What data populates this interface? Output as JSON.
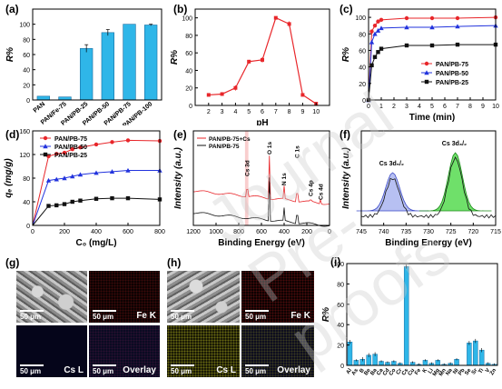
{
  "watermark": "Journal Pre-proofs",
  "colors": {
    "bar": "#2fb6e8",
    "bar_edge": "#1a6fa3",
    "red": "#e8262a",
    "blue": "#2233dd",
    "black": "#111111",
    "pH": "#e8262a"
  },
  "chart_data": [
    {
      "panel": "(a)",
      "type": "bar",
      "categories": [
        "PAN",
        "PAN/Fe-75",
        "PAN/PB-25",
        "PAN/PB-50",
        "PAN/PB-75",
        "PAN/PB-100"
      ],
      "values": [
        5,
        4,
        68,
        89,
        100,
        99
      ],
      "errors": [
        0,
        0,
        5,
        4,
        0,
        1
      ],
      "ylabel": "R%",
      "ylim": [
        0,
        120
      ],
      "yticks": [
        0,
        20,
        40,
        60,
        80,
        100
      ]
    },
    {
      "panel": "(b)",
      "type": "line",
      "x": [
        2,
        3,
        4,
        5,
        6,
        7,
        8,
        9,
        10
      ],
      "values": [
        12,
        13,
        20,
        50,
        52,
        100,
        93,
        12,
        2
      ],
      "errors": [
        0,
        0,
        3,
        2,
        3,
        0,
        3,
        0,
        0
      ],
      "xlabel": "pH",
      "ylabel": "R%",
      "xlim": [
        1,
        11
      ],
      "ylim": [
        0,
        110
      ],
      "xticks": [
        1,
        2,
        3,
        4,
        5,
        6,
        7,
        8,
        9,
        10,
        11
      ],
      "yticks": [
        0,
        20,
        40,
        60,
        80,
        100
      ]
    },
    {
      "panel": "(c)",
      "type": "line",
      "xlabel": "Time (min)",
      "ylabel": "R%",
      "xlim": [
        0,
        10
      ],
      "ylim": [
        0,
        110
      ],
      "xticks": [
        0,
        1,
        2,
        3,
        4,
        5,
        6,
        7,
        8,
        9,
        10
      ],
      "yticks": [
        0,
        20,
        40,
        60,
        80,
        100
      ],
      "legend": "center-right",
      "series": [
        {
          "name": "PAN/PB-75",
          "color": "#e8262a",
          "marker": "circle",
          "x": [
            0,
            0.25,
            0.5,
            0.75,
            1,
            3,
            5,
            7,
            10
          ],
          "values": [
            0,
            83,
            90,
            95,
            97,
            99,
            99,
            99,
            100
          ]
        },
        {
          "name": "PAN/PB-50",
          "color": "#2233dd",
          "marker": "triangle",
          "x": [
            0,
            0.25,
            0.5,
            0.75,
            1,
            3,
            5,
            7,
            10
          ],
          "values": [
            0,
            70,
            80,
            84,
            87,
            88,
            88,
            89,
            90
          ]
        },
        {
          "name": "PAN/PB-25",
          "color": "#111111",
          "marker": "square",
          "x": [
            0,
            0.25,
            0.5,
            0.75,
            1,
            3,
            5,
            7,
            10
          ],
          "values": [
            0,
            42,
            52,
            58,
            62,
            66,
            66,
            67,
            67
          ]
        }
      ]
    },
    {
      "panel": "(d)",
      "type": "line",
      "xlabel": "C₀ (mg/L)",
      "ylabel": "qₑ (mg/g)",
      "xlim": [
        0,
        800
      ],
      "ylim": [
        0,
        160
      ],
      "xticks": [
        0,
        200,
        400,
        600,
        800
      ],
      "yticks": [
        0,
        40,
        80,
        120,
        160
      ],
      "legend": "top-left",
      "series": [
        {
          "name": "PAN/PB-75",
          "color": "#e8262a",
          "marker": "circle",
          "x": [
            0,
            100,
            150,
            200,
            250,
            300,
            400,
            500,
            600,
            800
          ],
          "values": [
            0,
            117,
            121,
            123,
            129,
            132,
            137,
            141,
            144,
            143
          ]
        },
        {
          "name": "PAN/PB-50",
          "color": "#2233dd",
          "marker": "triangle",
          "x": [
            0,
            100,
            150,
            200,
            250,
            300,
            400,
            500,
            600,
            800
          ],
          "values": [
            0,
            76,
            78,
            80,
            83,
            86,
            89,
            91,
            93,
            93
          ]
        },
        {
          "name": "PAN/PB-25",
          "color": "#111111",
          "marker": "square",
          "x": [
            0,
            100,
            150,
            200,
            250,
            300,
            400,
            500,
            600,
            800
          ],
          "values": [
            0,
            33,
            34,
            36,
            40,
            42,
            45,
            46,
            46,
            44
          ]
        }
      ]
    },
    {
      "panel": "(e)",
      "type": "line",
      "xlabel": "Binding Energy (eV)",
      "ylabel": "Intensity (a.u.)",
      "xlim": [
        1200,
        0
      ],
      "xticks": [
        1200,
        1000,
        800,
        600,
        400,
        200,
        0
      ],
      "legend": "top-left",
      "annotations": [
        "O 1s",
        "Cs 3d",
        "N 1s",
        "C 1s",
        "Cs 4p",
        "Cs 4d"
      ],
      "series": [
        {
          "name": "PAN/PB-75+Cs",
          "color": "#e8262a"
        },
        {
          "name": "PAN/PB-75",
          "color": "#111111"
        }
      ]
    },
    {
      "panel": "(f)",
      "type": "line",
      "xlabel": "Binding Energy (eV)",
      "ylabel": "Intensity (a.u.)",
      "xlim": [
        745,
        715
      ],
      "xticks": [
        745,
        740,
        735,
        730,
        725,
        720,
        715
      ],
      "annotations": [
        "Cs 3d₅/₂",
        "Cs 3d₃/₂"
      ]
    },
    {
      "panel": "(i)",
      "type": "bar",
      "categories": [
        "Al",
        "As",
        "B",
        "Be",
        "Ba",
        "Ca",
        "Cd",
        "Co",
        "Cr",
        "Cs",
        "Cu",
        "Fe",
        "K",
        "Li",
        "Mg",
        "Mn",
        "Na",
        "Ni",
        "Pb",
        "Se",
        "Sr",
        "Ti",
        "V",
        "Zn"
      ],
      "values": [
        23,
        5,
        6,
        10,
        11,
        4,
        3,
        4,
        2,
        97,
        3,
        1,
        5,
        2,
        5,
        1,
        2,
        6,
        0,
        22,
        24,
        15,
        2,
        1
      ],
      "errors": [
        2,
        1,
        2,
        2,
        2,
        1,
        1,
        1,
        1,
        2,
        1,
        1,
        1,
        1,
        1,
        1,
        1,
        1,
        0,
        2,
        2,
        2,
        1,
        1
      ],
      "ylabel": "R%",
      "ylim": [
        0,
        100
      ],
      "yticks": [
        0,
        20,
        40,
        60,
        80,
        100
      ]
    }
  ],
  "micrographs": {
    "g_panel": "(g)",
    "h_panel": "(h)",
    "g_tiles": [
      {
        "label": "",
        "scale": "50 μm"
      },
      {
        "label": "Fe K",
        "scale": "50 μm"
      },
      {
        "label": "Cs L",
        "scale": "50 μm"
      },
      {
        "label": "Overlay",
        "scale": "50 μm"
      }
    ],
    "h_tiles": [
      {
        "label": "",
        "scale": "50 μm"
      },
      {
        "label": "Fe K",
        "scale": "50 μm"
      },
      {
        "label": "Cs L",
        "scale": "50 μm"
      },
      {
        "label": "Overlay",
        "scale": "50 μm"
      }
    ]
  }
}
